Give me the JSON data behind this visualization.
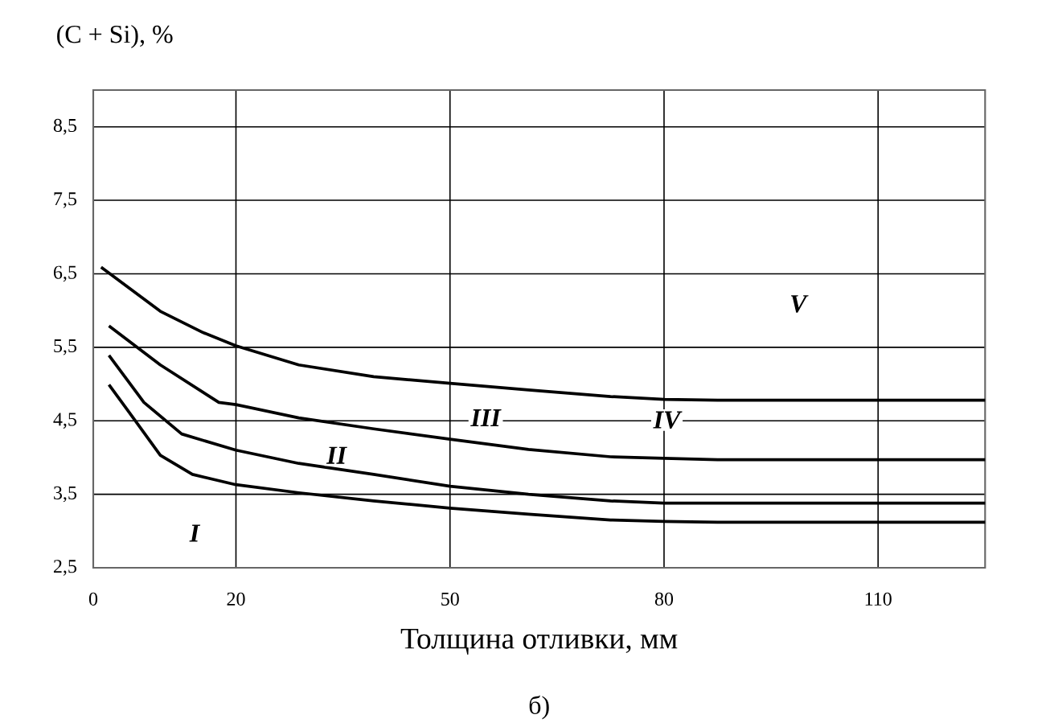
{
  "chart_data": {
    "type": "line",
    "ylabel": "(C + Si), %",
    "xlabel": "Толщина отливки, мм",
    "series": [
      {
        "color": "#000000",
        "x": [
          1.1,
          9.4,
          15.4,
          20,
          28.8,
          39.3,
          50,
          61,
          72.5,
          80,
          87.5,
          125
        ],
        "values": [
          6.59,
          5.99,
          5.7,
          5.52,
          5.26,
          5.1,
          5.01,
          4.92,
          4.83,
          4.79,
          4.78,
          4.78
        ]
      },
      {
        "color": "#000000",
        "x": [
          2.2,
          9.4,
          17.6,
          20,
          28.8,
          39.3,
          50,
          61,
          72.5,
          80,
          87.5,
          125
        ],
        "values": [
          5.79,
          5.26,
          4.75,
          4.72,
          4.54,
          4.39,
          4.25,
          4.11,
          4.01,
          3.99,
          3.97,
          3.97
        ]
      },
      {
        "color": "#000000",
        "x": [
          2.2,
          7.1,
          12.4,
          20,
          28.8,
          39.3,
          50,
          61,
          72.5,
          80,
          87.5,
          125
        ],
        "values": [
          5.39,
          4.75,
          4.32,
          4.1,
          3.92,
          3.77,
          3.61,
          3.5,
          3.41,
          3.38,
          3.38,
          3.38
        ]
      },
      {
        "color": "#000000",
        "x": [
          2.2,
          5.6,
          9.4,
          13.9,
          20,
          28.8,
          39.3,
          50,
          61,
          72.5,
          80,
          87.5,
          125
        ],
        "values": [
          4.99,
          4.54,
          4.03,
          3.77,
          3.63,
          3.52,
          3.41,
          3.31,
          3.23,
          3.15,
          3.13,
          3.12,
          3.12
        ]
      }
    ],
    "xlim": [
      0,
      125
    ],
    "ylim": [
      2.5,
      9.0
    ],
    "xticks": [
      0,
      20,
      50,
      80,
      110
    ],
    "yticks": [
      {
        "value": 2.5,
        "label": "2,5"
      },
      {
        "value": 3.5,
        "label": "3,5"
      },
      {
        "value": 4.5,
        "label": "4,5"
      },
      {
        "value": 5.5,
        "label": "5,5"
      },
      {
        "value": 6.5,
        "label": "6,5"
      },
      {
        "value": 7.5,
        "label": "7,5"
      },
      {
        "value": 8.5,
        "label": "8,5"
      }
    ],
    "grid": true,
    "marker": "none",
    "line_style": "solid",
    "annotations": [
      {
        "text": "I",
        "x": 14.2,
        "y": 2.97
      },
      {
        "text": "II",
        "x": 34.1,
        "y": 4.03
      },
      {
        "text": "III",
        "x": 55,
        "y": 4.54
      },
      {
        "text": "IV",
        "x": 80.4,
        "y": 4.51
      },
      {
        "text": "V",
        "x": 98.8,
        "y": 6.09
      },
      "б)"
    ]
  }
}
